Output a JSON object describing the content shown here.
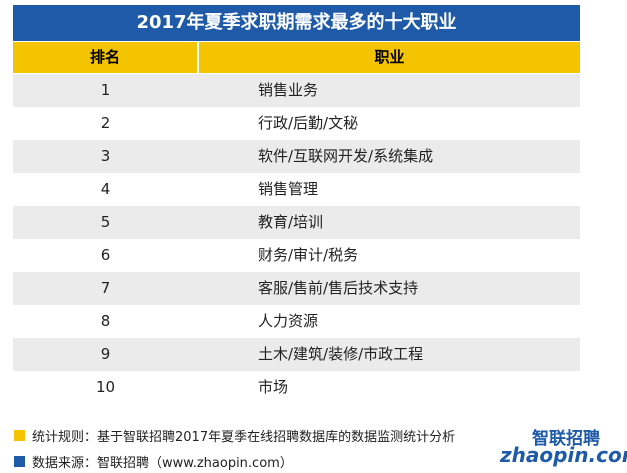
{
  "header": {
    "title": "2017年夏季求职期需求最多的十大职业"
  },
  "table": {
    "columns": [
      "排名",
      "职业"
    ],
    "rows": [
      [
        1,
        "销售业务"
      ],
      [
        2,
        "行政/后勤/文秘"
      ],
      [
        3,
        "软件/互联网开发/系统集成"
      ],
      [
        4,
        "销售管理"
      ],
      [
        5,
        "教育/培训"
      ],
      [
        6,
        "财务/审计/税务"
      ],
      [
        7,
        "客服/售前/售后技术支持"
      ],
      [
        8,
        "人力资源"
      ],
      [
        9,
        "土木/建筑/装修/市政工程"
      ],
      [
        10,
        "市场"
      ]
    ]
  },
  "footer": {
    "notes": [
      "统计规则：基于智联招聘2017年夏季在线招聘数据库的数据监测统计分析",
      "数据来源：智联招聘（www.zhaopin.com）"
    ]
  },
  "logo": {
    "name": "智联招聘",
    "url": "zhaopin.com"
  }
}
